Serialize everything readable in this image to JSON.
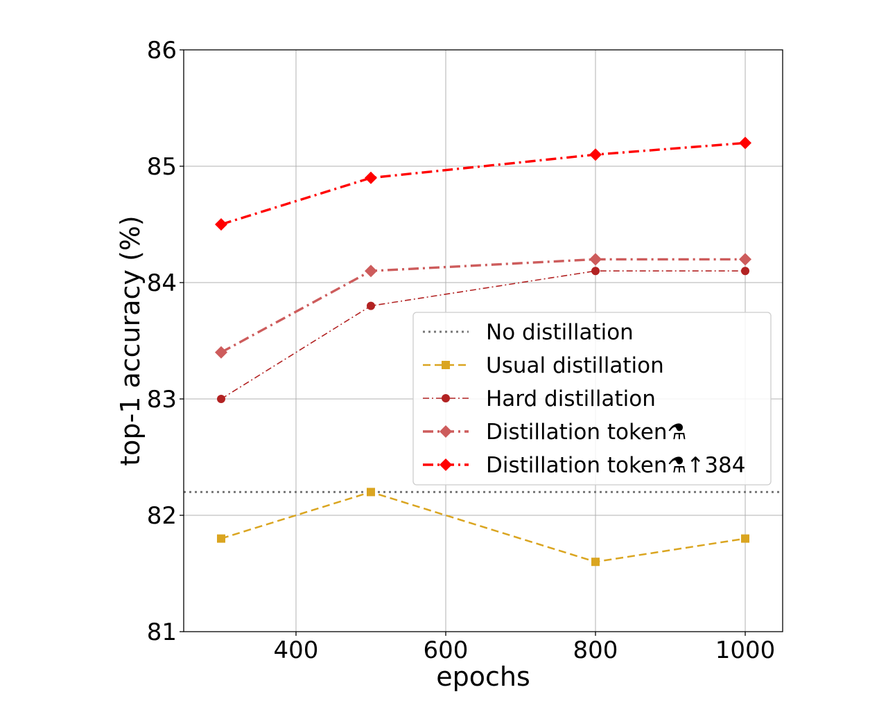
{
  "chart_data": {
    "type": "line",
    "title": "",
    "xlabel": "epochs",
    "ylabel": "top-1 accuracy (%)",
    "xlim": [
      250,
      1050
    ],
    "ylim": [
      81,
      86
    ],
    "xticks": [
      400,
      600,
      800,
      1000
    ],
    "yticks": [
      81,
      82,
      83,
      84,
      85,
      86
    ],
    "xtick_labels": [
      "400",
      "600",
      "800",
      "1000"
    ],
    "ytick_labels": [
      "81",
      "82",
      "83",
      "84",
      "85",
      "86"
    ],
    "grid": true,
    "legend_position": "center-right",
    "series": [
      {
        "name": "No distillation",
        "kind": "hline",
        "y": 82.2,
        "color": "#777777",
        "linestyle": "dotted",
        "marker": "none"
      },
      {
        "name": "Usual distillation",
        "x": [
          300,
          500,
          800,
          1000
        ],
        "values": [
          81.8,
          82.2,
          81.6,
          81.8
        ],
        "color": "#DAA520",
        "linestyle": "dashed",
        "marker": "square"
      },
      {
        "name": "Hard distillation",
        "x": [
          300,
          500,
          800,
          1000
        ],
        "values": [
          83.0,
          83.8,
          84.1,
          84.1
        ],
        "color": "#B22222",
        "linestyle": "dashdot-thin",
        "marker": "circle"
      },
      {
        "name": "Distillation token⚗",
        "x": [
          300,
          500,
          800,
          1000
        ],
        "values": [
          83.4,
          84.1,
          84.2,
          84.2
        ],
        "color": "#CD5C5C",
        "linestyle": "dashdot",
        "marker": "diamond"
      },
      {
        "name": "Distillation token⚗↑384",
        "x": [
          300,
          500,
          800,
          1000
        ],
        "values": [
          84.5,
          84.9,
          85.1,
          85.2
        ],
        "color": "#FF0000",
        "linestyle": "dashdot",
        "marker": "diamond"
      }
    ]
  }
}
